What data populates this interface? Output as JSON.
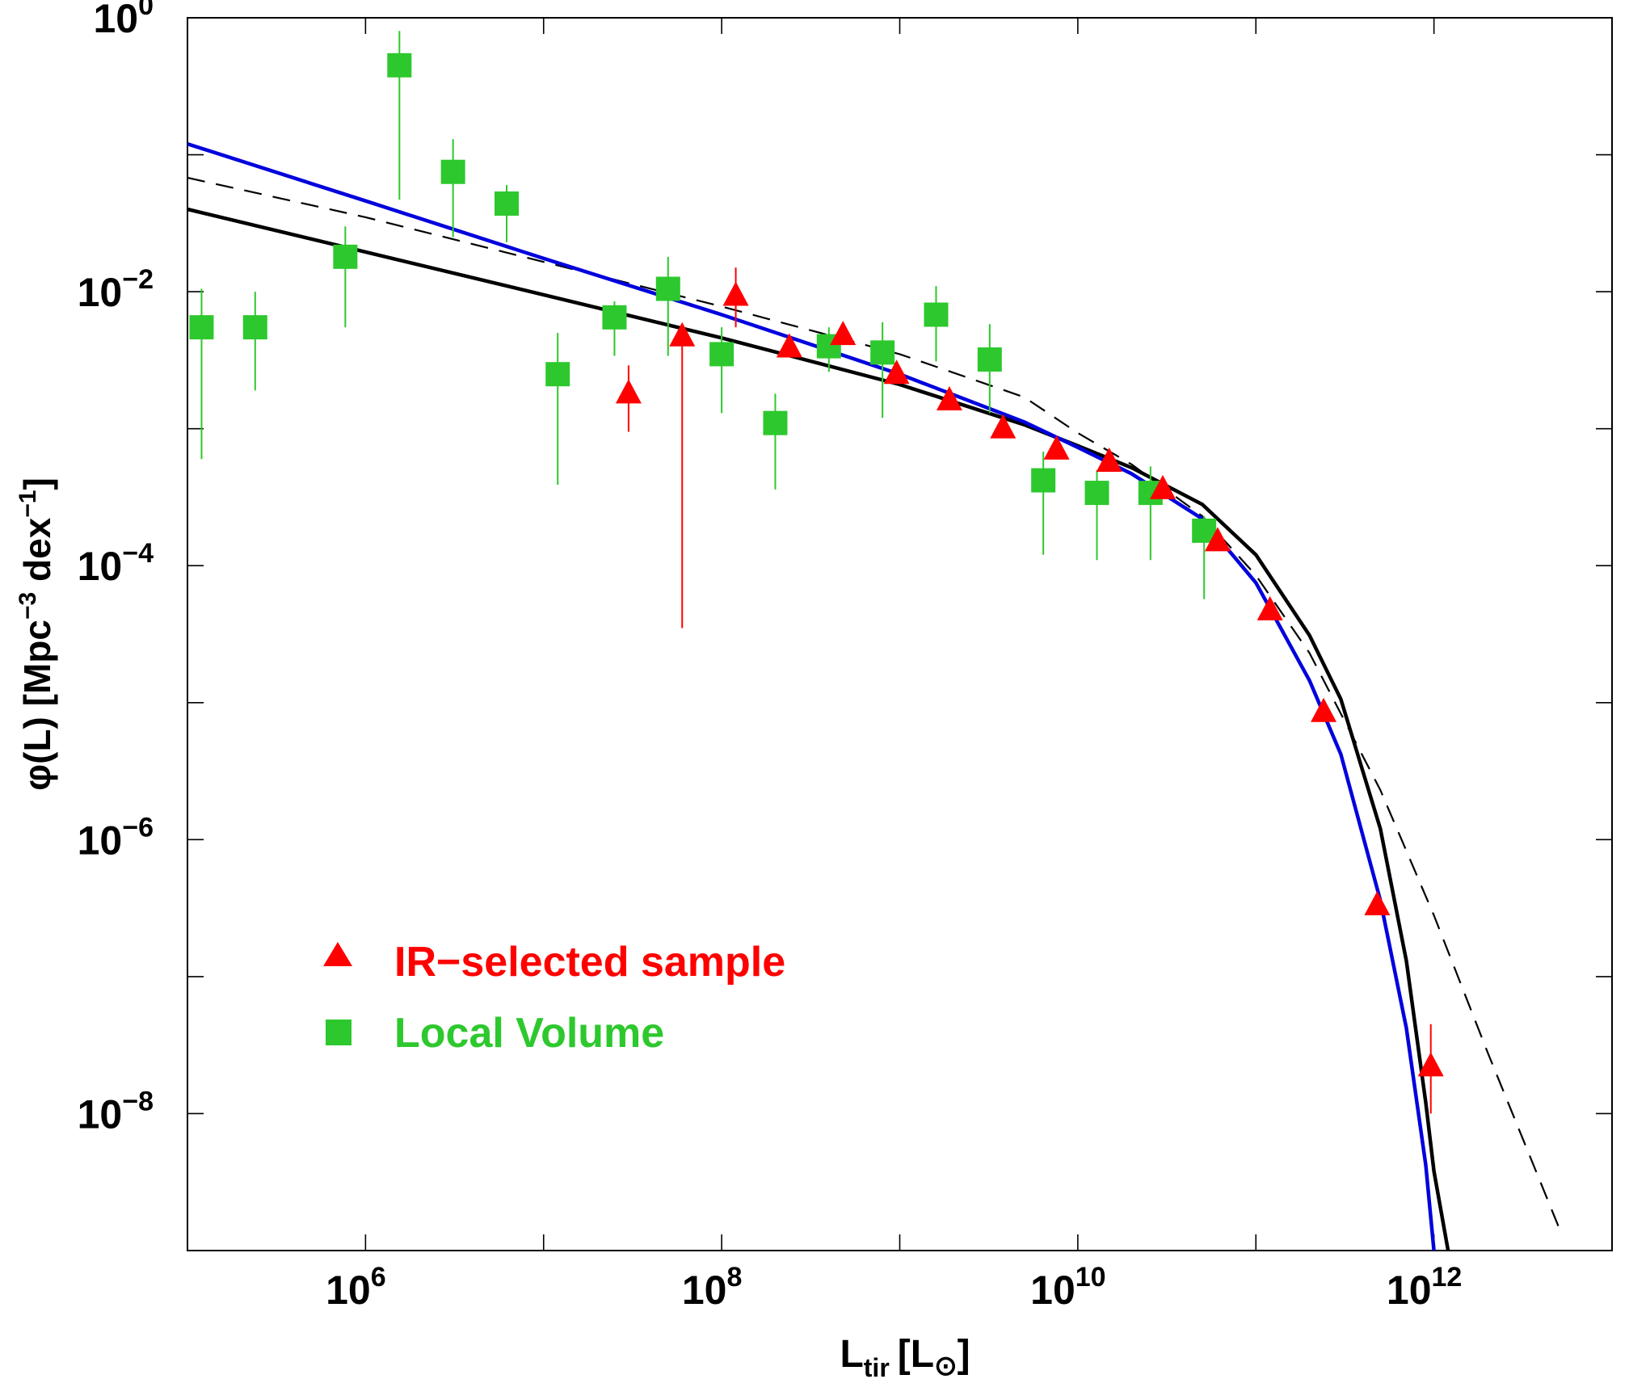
{
  "chart_data": {
    "type": "scatter",
    "title": "",
    "xlabel": {
      "main": "L",
      "sub": "tir",
      "bracket_open": "[L",
      "sun_symbol": "⊙",
      "bracket_close": "]"
    },
    "ylabel": {
      "prefix": "φ(L)  [Mpc",
      "exp1": "−3",
      "mid": " dex",
      "exp2": "−1",
      "suffix": "]"
    },
    "x_scale": "log",
    "y_scale": "log",
    "xlim": [
      100000,
      10000000000000
    ],
    "ylim": [
      1e-09,
      1
    ],
    "x_ticks": [
      {
        "value": 1000000,
        "base": "10",
        "exp": "6"
      },
      {
        "value": 100000000,
        "base": "10",
        "exp": "8"
      },
      {
        "value": 10000000000,
        "base": "10",
        "exp": "10"
      },
      {
        "value": 1000000000000,
        "base": "10",
        "exp": "12"
      }
    ],
    "y_ticks": [
      {
        "value": 1,
        "base": "10",
        "exp": "0"
      },
      {
        "value": 0.01,
        "base": "10",
        "exp": "−2"
      },
      {
        "value": 0.0001,
        "base": "10",
        "exp": "−4"
      },
      {
        "value": 1e-06,
        "base": "10",
        "exp": "−6"
      },
      {
        "value": 1e-08,
        "base": "10",
        "exp": "−8"
      }
    ],
    "grid": false,
    "legend_position": "lower-left",
    "series": [
      {
        "name": "IR−selected sample",
        "marker": "triangle",
        "color": "#ff0000",
        "points": [
          {
            "x": 30000000,
            "y": 0.0018,
            "ylo": 0.00095,
            "yhi": 0.0029
          },
          {
            "x": 60000000,
            "y": 0.0047,
            "ylo": 3.5e-05,
            "yhi": 0.0052
          },
          {
            "x": 120000000,
            "y": 0.0093,
            "ylo": 0.0055,
            "yhi": 0.015
          },
          {
            "x": 240000000,
            "y": 0.0039,
            "ylo": 0.0036,
            "yhi": 0.0042
          },
          {
            "x": 480000000,
            "y": 0.0048,
            "ylo": 0.0045,
            "yhi": 0.0051
          },
          {
            "x": 960000000,
            "y": 0.0025,
            "ylo": 0.0023,
            "yhi": 0.0027
          },
          {
            "x": 1900000000,
            "y": 0.0016,
            "ylo": 0.0015,
            "yhi": 0.0017
          },
          {
            "x": 3800000000,
            "y": 0.001,
            "ylo": 0.00095,
            "yhi": 0.00105
          },
          {
            "x": 7600000000,
            "y": 0.0007,
            "ylo": 0.00066,
            "yhi": 0.00074
          },
          {
            "x": 15000000000,
            "y": 0.00057,
            "ylo": 0.00054,
            "yhi": 0.0006
          },
          {
            "x": 30000000000,
            "y": 0.00036,
            "ylo": 0.00034,
            "yhi": 0.00038
          },
          {
            "x": 61000000000,
            "y": 0.00015,
            "ylo": 0.00014,
            "yhi": 0.00016
          },
          {
            "x": 120000000000,
            "y": 4.7e-05,
            "ylo": 4.4e-05,
            "yhi": 5e-05
          },
          {
            "x": 240000000000,
            "y": 8.5e-06,
            "ylo": 7.9e-06,
            "yhi": 9.1e-06
          },
          {
            "x": 480000000000,
            "y": 3.3e-07,
            "ylo": 3e-07,
            "yhi": 3.6e-07
          },
          {
            "x": 960000000000,
            "y": 2.2e-08,
            "ylo": 1e-08,
            "yhi": 4.5e-08
          }
        ]
      },
      {
        "name": "Local Volume",
        "marker": "square",
        "color": "#2dc82d",
        "points": [
          {
            "x": 120000,
            "y": 0.0055,
            "ylo": 0.0006,
            "yhi": 0.0105
          },
          {
            "x": 240000,
            "y": 0.0055,
            "ylo": 0.0019,
            "yhi": 0.01
          },
          {
            "x": 770000,
            "y": 0.018,
            "ylo": 0.0055,
            "yhi": 0.03
          },
          {
            "x": 1550000,
            "y": 0.45,
            "ylo": 0.047,
            "yhi": 0.8
          },
          {
            "x": 3100000,
            "y": 0.075,
            "ylo": 0.025,
            "yhi": 0.13
          },
          {
            "x": 6200000,
            "y": 0.044,
            "ylo": 0.023,
            "yhi": 0.06
          },
          {
            "x": 12000000,
            "y": 0.0025,
            "ylo": 0.00039,
            "yhi": 0.005
          },
          {
            "x": 25000000,
            "y": 0.0065,
            "ylo": 0.0034,
            "yhi": 0.0085
          },
          {
            "x": 50000000,
            "y": 0.0105,
            "ylo": 0.0034,
            "yhi": 0.018
          },
          {
            "x": 100000000,
            "y": 0.0035,
            "ylo": 0.0013,
            "yhi": 0.0055
          },
          {
            "x": 200000000,
            "y": 0.0011,
            "ylo": 0.00036,
            "yhi": 0.0018
          },
          {
            "x": 400000000,
            "y": 0.004,
            "ylo": 0.0026,
            "yhi": 0.0055
          },
          {
            "x": 800000000,
            "y": 0.0036,
            "ylo": 0.0012,
            "yhi": 0.006
          },
          {
            "x": 1600000000,
            "y": 0.0068,
            "ylo": 0.0031,
            "yhi": 0.011
          },
          {
            "x": 3200000000,
            "y": 0.0032,
            "ylo": 0.0013,
            "yhi": 0.0058
          },
          {
            "x": 6400000000,
            "y": 0.00042,
            "ylo": 0.00012,
            "yhi": 0.00068
          },
          {
            "x": 12800000000,
            "y": 0.00034,
            "ylo": 0.00011,
            "yhi": 0.0005
          },
          {
            "x": 25600000000,
            "y": 0.00034,
            "ylo": 0.00011,
            "yhi": 0.00053
          },
          {
            "x": 51200000000,
            "y": 0.00018,
            "ylo": 5.7e-05,
            "yhi": 0.00023
          }
        ]
      }
    ],
    "curves": [
      {
        "style": "solid",
        "color": "#000000",
        "width": 4.5,
        "points": [
          [
            100000,
            0.04
          ],
          [
            1000000,
            0.0195
          ],
          [
            10000000,
            0.0095
          ],
          [
            100000000,
            0.0046
          ],
          [
            1000000000,
            0.0021
          ],
          [
            5000000000,
            0.00107
          ],
          [
            10000000000,
            0.00075
          ],
          [
            20000000000,
            0.00052
          ],
          [
            50000000000,
            0.00028
          ],
          [
            100000000000,
            0.00012
          ],
          [
            200000000000,
            3.1e-05
          ],
          [
            300000000000,
            1.06e-05
          ],
          [
            500000000000,
            1.2e-06
          ],
          [
            700000000000,
            1.3e-07
          ],
          [
            900000000000,
            1.2e-08
          ],
          [
            1000000000000,
            3.8e-09
          ],
          [
            1200000000000,
            1e-09
          ]
        ]
      },
      {
        "style": "solid",
        "color": "#0000dd",
        "width": 4.5,
        "points": [
          [
            100000,
            0.12
          ],
          [
            1000000,
            0.046
          ],
          [
            10000000,
            0.0175
          ],
          [
            100000000,
            0.0068
          ],
          [
            1000000000,
            0.0025
          ],
          [
            5000000000,
            0.00112
          ],
          [
            10000000000,
            0.00073
          ],
          [
            20000000000,
            0.00047
          ],
          [
            50000000000,
            0.00022
          ],
          [
            100000000000,
            7.5e-05
          ],
          [
            200000000000,
            1.45e-05
          ],
          [
            300000000000,
            4.2e-06
          ],
          [
            500000000000,
            3.6e-07
          ],
          [
            700000000000,
            4.2e-08
          ],
          [
            900000000000,
            4.2e-09
          ],
          [
            1000000000000,
            1e-09
          ]
        ]
      },
      {
        "style": "dashed",
        "color": "#000000",
        "width": 2.2,
        "points": [
          [
            100000,
            0.068
          ],
          [
            1000000,
            0.035
          ],
          [
            10000000,
            0.0165
          ],
          [
            100000000,
            0.0078
          ],
          [
            1000000000,
            0.0035
          ],
          [
            5000000000,
            0.0017
          ],
          [
            10000000000,
            0.00093
          ],
          [
            20000000000,
            0.00055
          ],
          [
            50000000000,
            0.00023
          ],
          [
            100000000000,
            8.5e-05
          ],
          [
            200000000000,
            2.3e-05
          ],
          [
            500000000000,
            2.3e-06
          ],
          [
            1000000000000,
            2.8e-07
          ],
          [
            2000000000000,
            2.8e-08
          ],
          [
            5000000000000,
            1.5e-09
          ]
        ]
      }
    ]
  }
}
